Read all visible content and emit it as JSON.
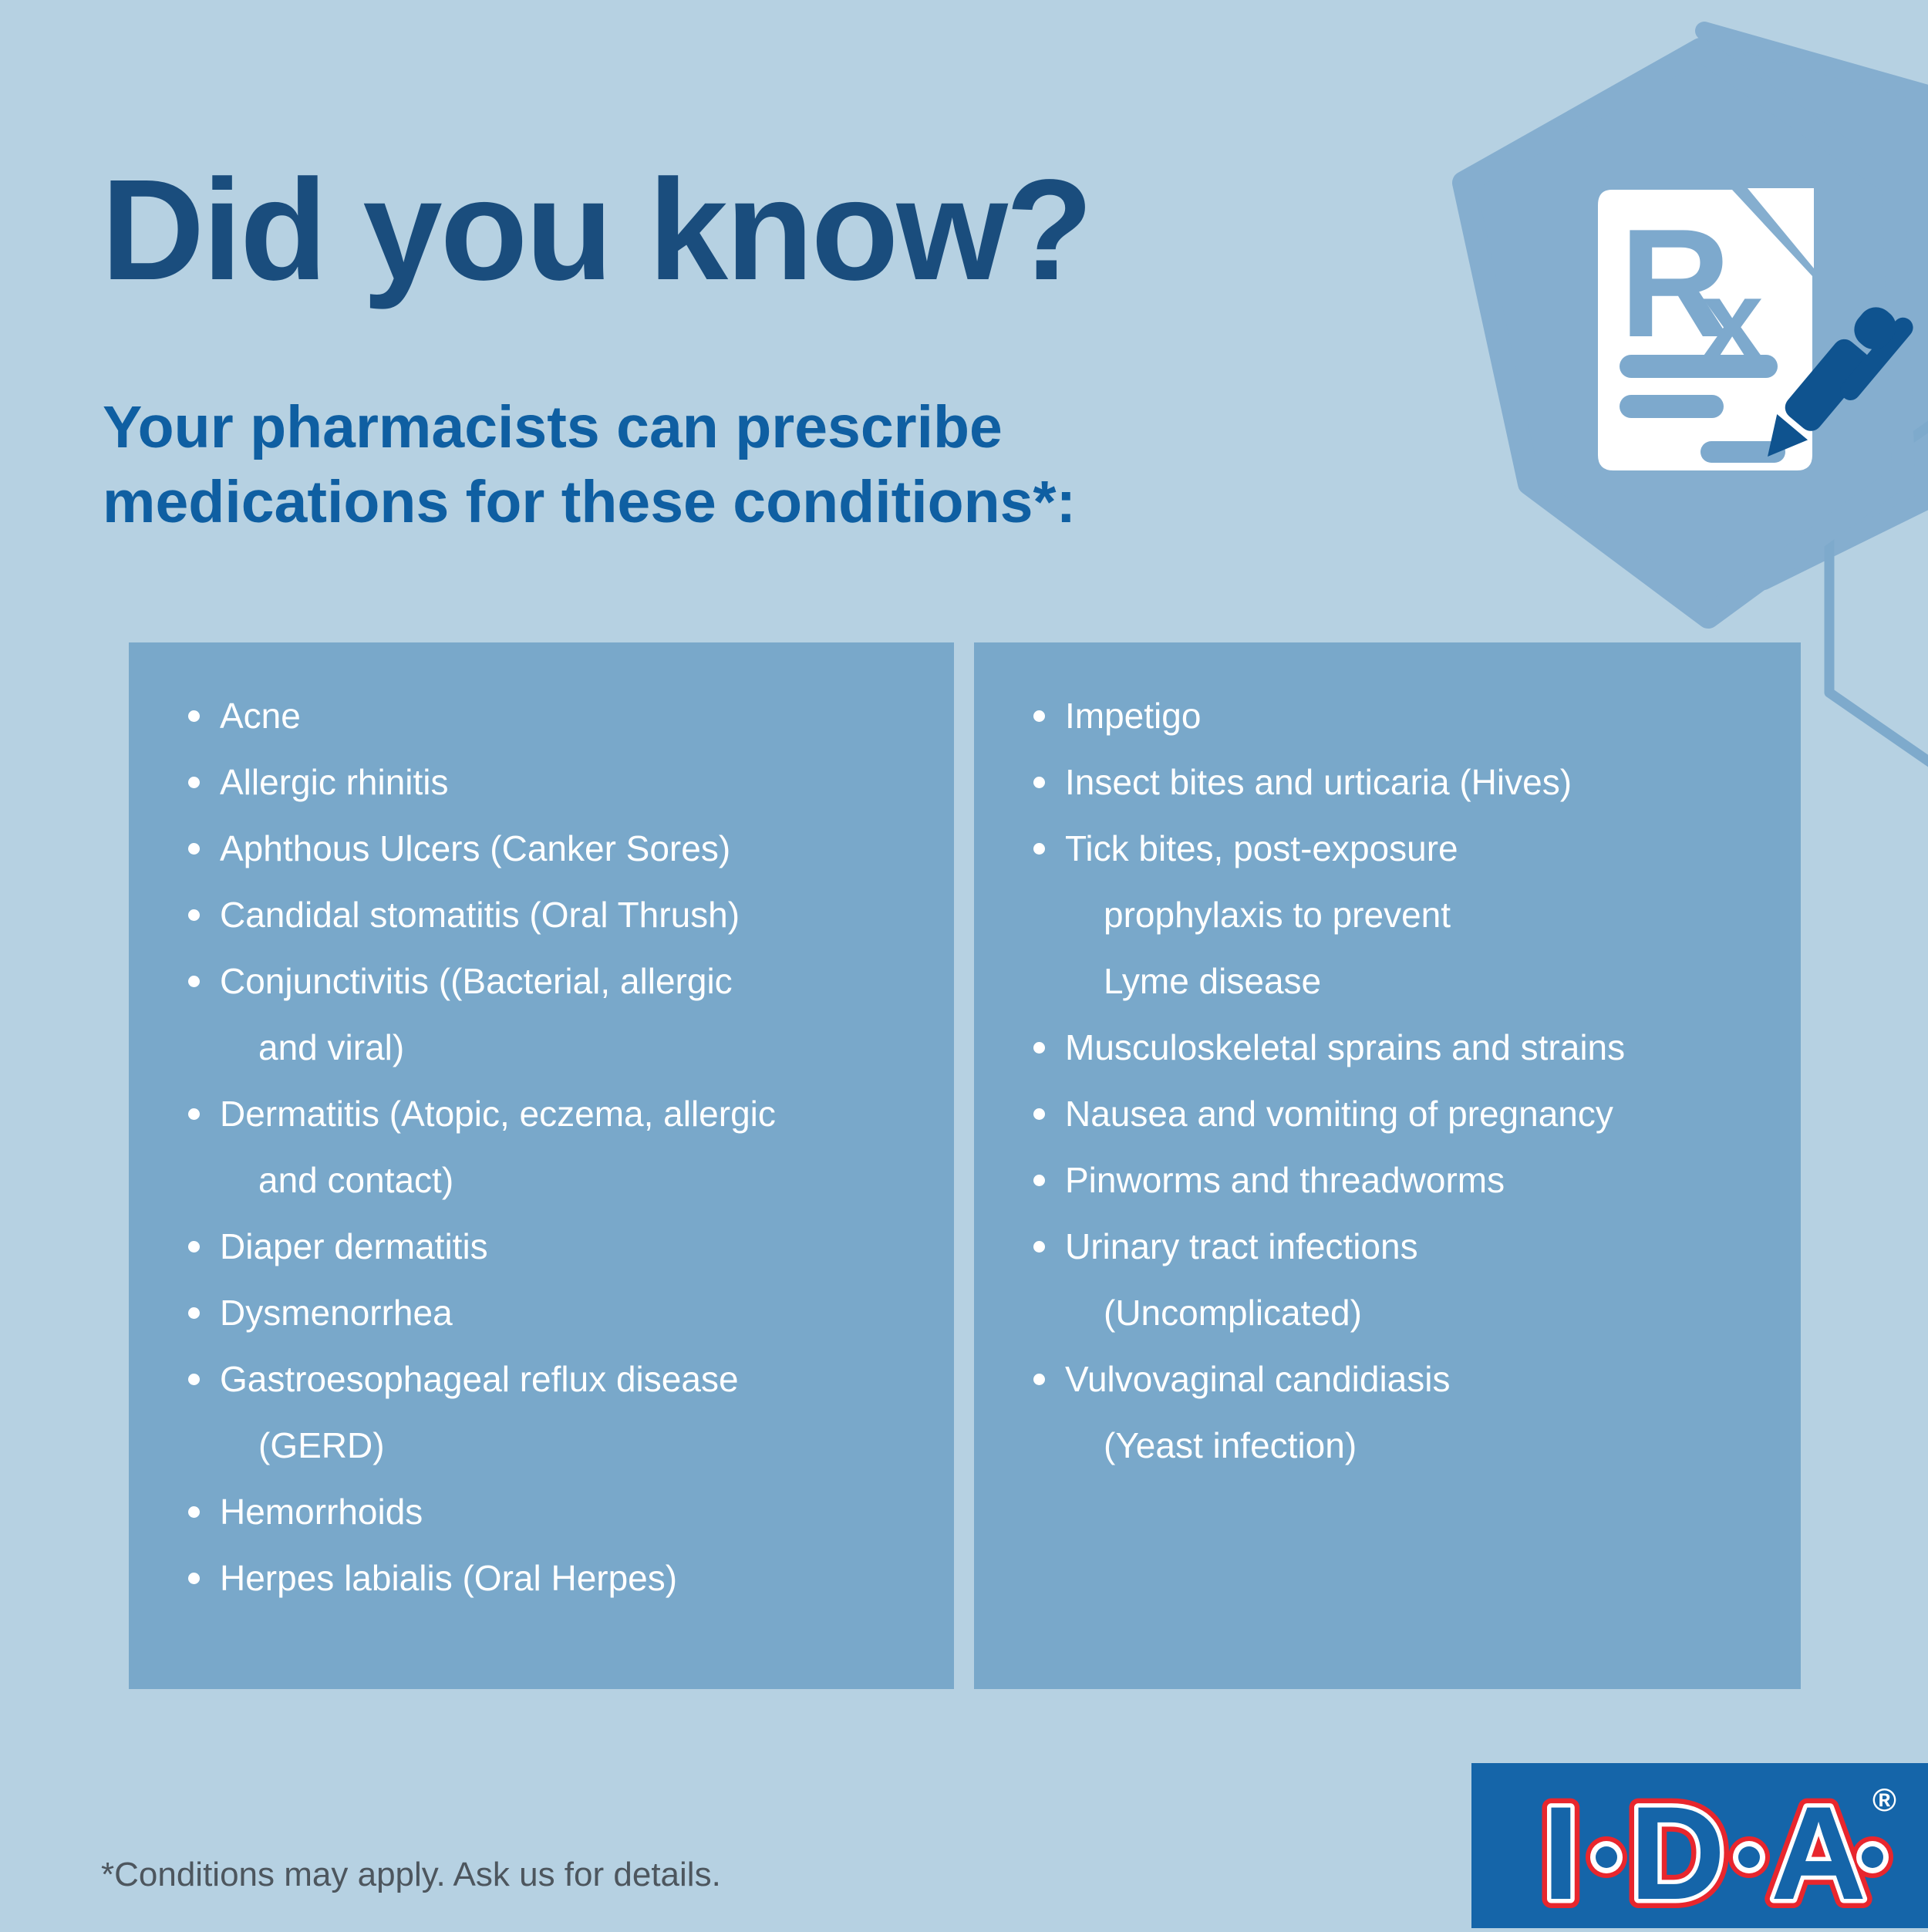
{
  "theme": {
    "bg": "#b6d1e2",
    "panel": "#79a8ca",
    "hexagon": "#85aecf",
    "hexline": "#7eaacc",
    "navy": "#1a4d7d",
    "blue": "#0f5fa2",
    "pen": "#0f538f",
    "docline": "#7da9cd",
    "listtext": "#ffffff",
    "footer": "#4d565e",
    "logoblue": "#1565a9",
    "logored": "#e8262d"
  },
  "header": {
    "title": "Did you know?",
    "subtitle_line1": "Your pharmacists can prescribe",
    "subtitle_line2": "medications for these conditions*:"
  },
  "decor": {
    "icons": [
      "hexagon",
      "rx-document-icon",
      "pen-icon",
      "hexagon-outline"
    ],
    "rx_symbol_r": "R",
    "rx_symbol_x": "x"
  },
  "panels": {
    "left": {
      "items": [
        {
          "lines": [
            "Acne"
          ]
        },
        {
          "lines": [
            "Allergic rhinitis"
          ]
        },
        {
          "lines": [
            "Aphthous Ulcers (Canker Sores)"
          ]
        },
        {
          "lines": [
            "Candidal stomatitis (Oral Thrush)"
          ]
        },
        {
          "lines": [
            "Conjunctivitis ((Bacterial, allergic",
            "and viral)"
          ]
        },
        {
          "lines": [
            "Dermatitis (Atopic, eczema, allergic",
            "and contact)"
          ]
        },
        {
          "lines": [
            "Diaper dermatitis"
          ]
        },
        {
          "lines": [
            "Dysmenorrhea"
          ]
        },
        {
          "lines": [
            "Gastroesophageal reflux disease",
            "(GERD)"
          ]
        },
        {
          "lines": [
            "Hemorrhoids"
          ]
        },
        {
          "lines": [
            "Herpes labialis (Oral Herpes)"
          ]
        }
      ]
    },
    "right": {
      "items": [
        {
          "lines": [
            "Impetigo"
          ]
        },
        {
          "lines": [
            "Insect bites and urticaria (Hives)"
          ]
        },
        {
          "lines": [
            "Tick bites, post-exposure",
            "prophylaxis to prevent",
            "Lyme disease"
          ]
        },
        {
          "lines": [
            "Musculoskeletal sprains and strains"
          ]
        },
        {
          "lines": [
            "Nausea and vomiting of pregnancy"
          ]
        },
        {
          "lines": [
            "Pinworms and threadworms"
          ]
        },
        {
          "lines": [
            "Urinary tract infections",
            "(Uncomplicated)"
          ]
        },
        {
          "lines": [
            "Vulvovaginal candidiasis",
            "(Yeast infection)"
          ]
        }
      ]
    }
  },
  "footer": {
    "disclaimer": "*Conditions may apply. Ask us for details."
  },
  "logo": {
    "letters": [
      "I",
      "D",
      "A"
    ],
    "registered": "®"
  }
}
